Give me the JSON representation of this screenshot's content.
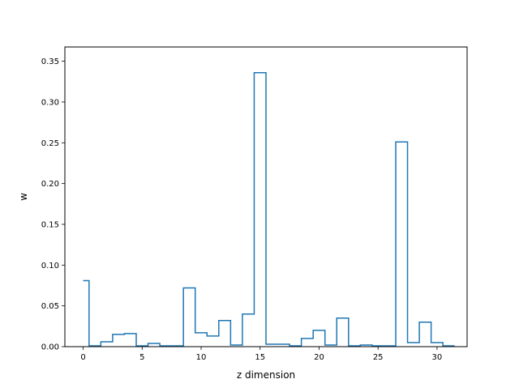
{
  "chart_data": {
    "type": "step",
    "title": "",
    "xlabel": "z dimension",
    "ylabel": "w",
    "xlim": [
      -1.55,
      32.55
    ],
    "ylim": [
      0,
      0.3675
    ],
    "grid": false,
    "xticks": [
      0,
      5,
      10,
      15,
      20,
      25,
      30
    ],
    "xtick_labels": [
      "0",
      "5",
      "10",
      "15",
      "20",
      "25",
      "30"
    ],
    "yticks": [
      0.0,
      0.05,
      0.1,
      0.15,
      0.2,
      0.25,
      0.3,
      0.35
    ],
    "ytick_labels": [
      "0.00",
      "0.05",
      "0.10",
      "0.15",
      "0.20",
      "0.25",
      "0.30",
      "0.35"
    ],
    "x": [
      0,
      1,
      2,
      3,
      4,
      5,
      6,
      7,
      8,
      9,
      10,
      11,
      12,
      13,
      14,
      15,
      16,
      17,
      18,
      19,
      20,
      21,
      22,
      23,
      24,
      25,
      26,
      27,
      28,
      29,
      30,
      31
    ],
    "values": [
      0.081,
      0.001,
      0.006,
      0.015,
      0.016,
      0.001,
      0.004,
      0.001,
      0.001,
      0.072,
      0.017,
      0.013,
      0.032,
      0.002,
      0.04,
      0.336,
      0.003,
      0.003,
      0.001,
      0.01,
      0.02,
      0.002,
      0.035,
      0.001,
      0.002,
      0.001,
      0.001,
      0.251,
      0.005,
      0.03,
      0.005,
      0.001
    ],
    "series_color": "#1f77b4"
  }
}
